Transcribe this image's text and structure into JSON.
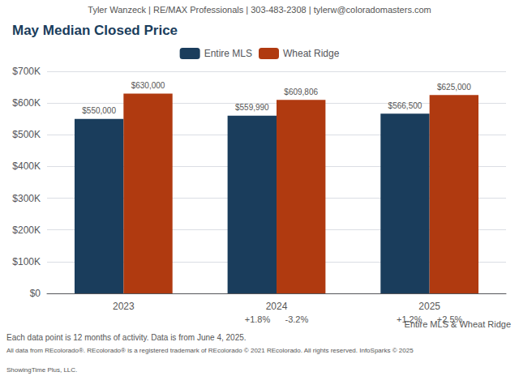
{
  "chart_data": {
    "type": "bar",
    "header": "Tyler Wanzeck | RE/MAX Professionals | 303-483-2308 | tylerw@coloradomasters.com",
    "title": "May Median Closed Price",
    "categories": [
      "2023",
      "2024",
      "2025"
    ],
    "series": [
      {
        "name": "Entire MLS",
        "color": "#1a3d5c",
        "values": [
          550000,
          559990,
          566500
        ],
        "value_labels": [
          "$550,000",
          "$559,990",
          "$566,500"
        ],
        "change_labels": [
          null,
          "+1.8%",
          "+1.2%"
        ]
      },
      {
        "name": "Wheat Ridge",
        "color": "#b03a10",
        "values": [
          630000,
          609806,
          625000
        ],
        "value_labels": [
          "$630,000",
          "$609,806",
          "$625,000"
        ],
        "change_labels": [
          null,
          "-3.2%",
          "+2.5%"
        ]
      }
    ],
    "ylim": [
      0,
      700000
    ],
    "yticks": [
      {
        "value": 0,
        "label": "$0"
      },
      {
        "value": 100000,
        "label": "$100K"
      },
      {
        "value": 200000,
        "label": "$200K"
      },
      {
        "value": 300000,
        "label": "$300K"
      },
      {
        "value": 400000,
        "label": "$400K"
      },
      {
        "value": 500000,
        "label": "$500K"
      },
      {
        "value": 600000,
        "label": "$600K"
      },
      {
        "value": 700000,
        "label": "$700K"
      }
    ],
    "grid": true,
    "legend": "top",
    "data_labels": true,
    "caption": "Entire MLS & Wheat Ridge",
    "footer": [
      "Each data point is 12 months of activity. Data is from June 4, 2025.",
      "All data from REcolorado®. REcolorado® is a registered trademark of REcolorado © 2021 REcolorado. All rights reserved. InfoSparks © 2025",
      "ShowingTime Plus, LLC."
    ]
  }
}
